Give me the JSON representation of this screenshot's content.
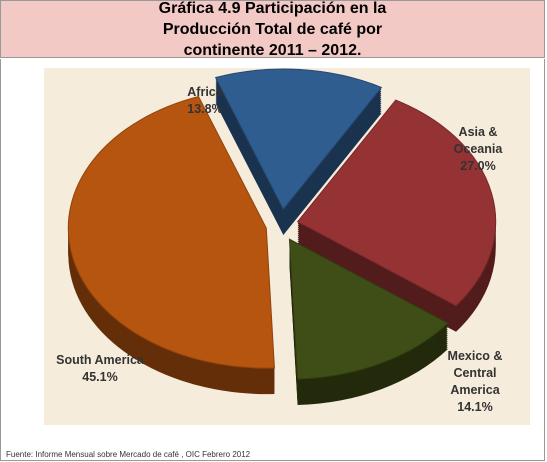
{
  "chart_data": {
    "type": "pie",
    "title": "Gráfica 4.9 Participación en la Producción Total de café por continente 2011 – 2012.",
    "categories": [
      "Africa",
      "Asia & Oceania",
      "Mexico & Central America",
      "South America"
    ],
    "values": [
      13.8,
      27.0,
      14.1,
      45.1
    ],
    "value_labels": [
      "13.8%",
      "27.0%",
      "14.1%",
      "45.1%"
    ],
    "colors": [
      "#2f5d8f",
      "#953234",
      "#3f4d16",
      "#b5550f"
    ],
    "source": "Fuente: Informe Mensual sobre Mercado de café , OIC Febrero 2012"
  }
}
